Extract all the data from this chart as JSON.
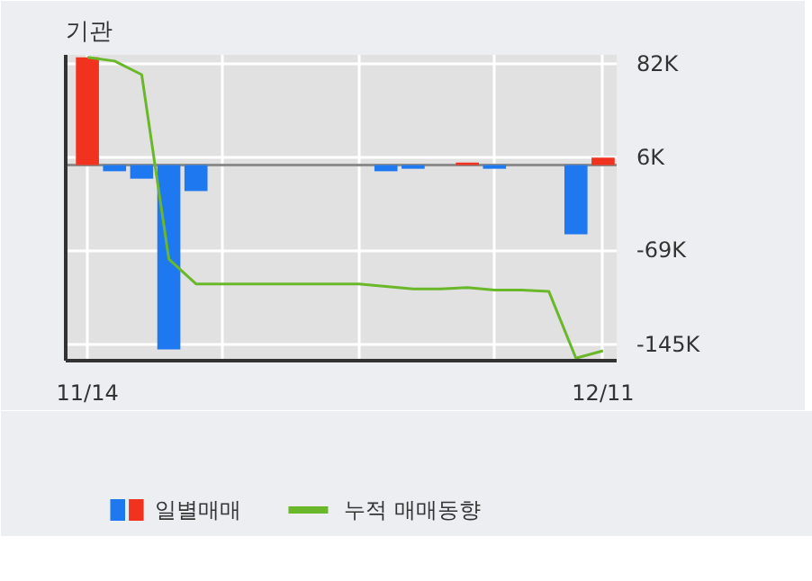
{
  "chart_data": {
    "type": "bar",
    "title": "기관",
    "categories": [
      "11/14",
      null,
      null,
      null,
      null,
      null,
      null,
      null,
      null,
      null,
      null,
      null,
      null,
      null,
      null,
      null,
      null,
      null,
      null,
      "12/11"
    ],
    "series": [
      {
        "name": "일별매매",
        "colors": [
          "#f0321e",
          "#1e78f0",
          "#1e78f0",
          "#1e78f0",
          "#1e78f0",
          null,
          null,
          null,
          null,
          null,
          null,
          "#1e78f0",
          "#1e78f0",
          null,
          "#f0321e",
          "#1e78f0",
          null,
          null,
          "#1e78f0",
          "#f0321e"
        ],
        "values": [
          87,
          -5,
          -11,
          -149,
          -21,
          null,
          null,
          null,
          null,
          null,
          null,
          -5,
          -3,
          null,
          2,
          -3,
          null,
          null,
          -56,
          6
        ]
      },
      {
        "name": "누적 매매동향",
        "type": "line",
        "color": "#6ab82a",
        "values": [
          87,
          84,
          73,
          -76,
          -96,
          -96,
          -96,
          -96,
          -96,
          -96,
          -96,
          -98,
          -100,
          -100,
          -99,
          -101,
          -101,
          -102,
          -156,
          -150
        ]
      }
    ],
    "ylim": [
      -158,
      89
    ],
    "yticks": [
      {
        "value": 82,
        "label": "82K"
      },
      {
        "value": 6,
        "label": "6K"
      },
      {
        "value": -69,
        "label": "-69K"
      },
      {
        "value": -145,
        "label": "-145K"
      }
    ],
    "grid": true,
    "legend": "bottom"
  }
}
